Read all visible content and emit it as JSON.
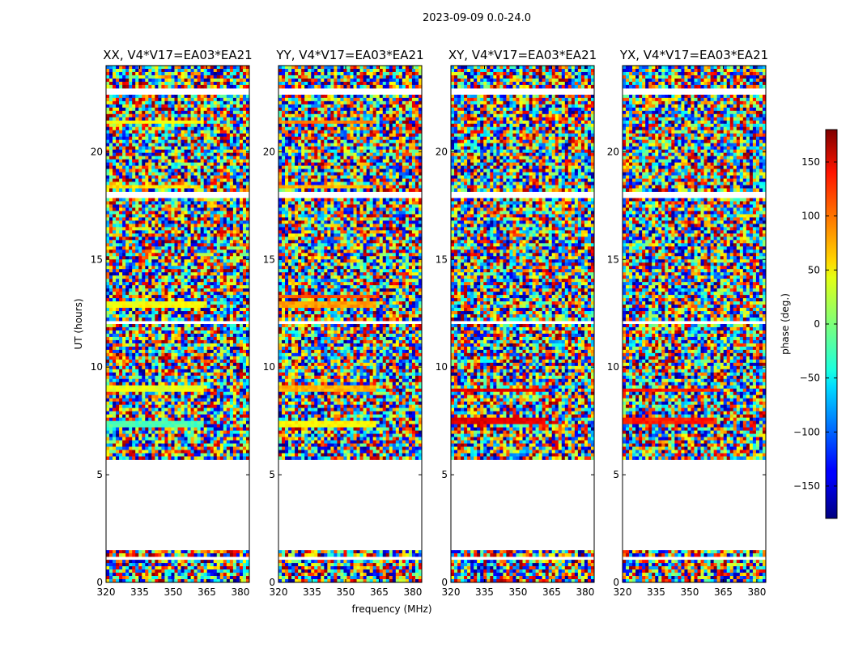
{
  "figure_title": "2023-09-09 0.0-24.0",
  "chart_data": {
    "type": "heatmap",
    "suptitle": "2023-09-09 0.0-24.0",
    "panels": [
      {
        "title": "XX, V4*V17=EA03*EA21",
        "pol": "XX",
        "seed": 11
      },
      {
        "title": "YY, V4*V17=EA03*EA21",
        "pol": "YY",
        "seed": 23
      },
      {
        "title": "XY, V4*V17=EA03*EA21",
        "pol": "XY",
        "seed": 37
      },
      {
        "title": "YX, V4*V17=EA03*EA21",
        "pol": "YX",
        "seed": 53
      }
    ],
    "xlabel": "frequency (MHz)",
    "ylabel": "UT (hours)",
    "xlim": [
      320,
      384
    ],
    "ylim": [
      0,
      24
    ],
    "x_ticks": [
      320,
      335,
      350,
      365,
      380
    ],
    "y_ticks": [
      0,
      5,
      10,
      15,
      20
    ],
    "colorbar": {
      "label": "phase (deg.)",
      "range": [
        -180,
        180
      ],
      "ticks": [
        150,
        100,
        50,
        0,
        -50,
        -100,
        -150
      ],
      "colormap": "jet"
    },
    "no_data_ut_ranges": [
      [
        1.5,
        5.7
      ],
      [
        22.6,
        22.9
      ],
      [
        17.9,
        18.1
      ],
      [
        12.0,
        12.15
      ],
      [
        1.05,
        1.15
      ]
    ],
    "note": "Values are per-sample visibility phase in degrees; noise-dominated, coherent bands near 7.3, 8.9, 12.8, 13.3, 18.4 and 21.4 UT"
  }
}
